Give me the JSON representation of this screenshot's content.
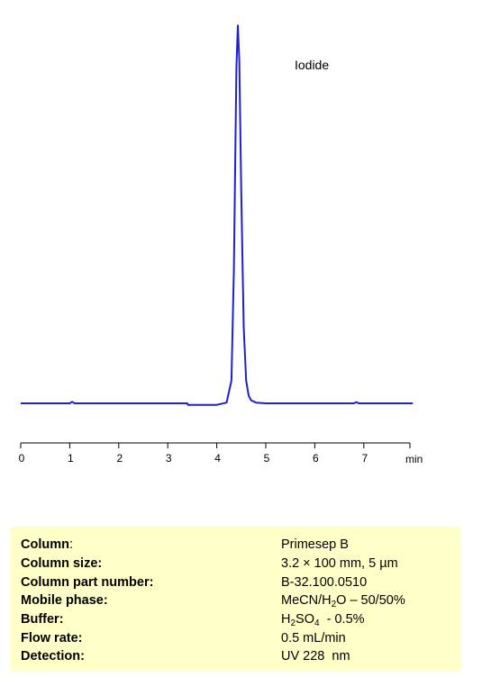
{
  "chart_data": {
    "type": "line",
    "xlabel": "min",
    "xlim": [
      0,
      8
    ],
    "xticks": [
      "0",
      "1",
      "2",
      "3",
      "4",
      "5",
      "6",
      "7"
    ],
    "ylim": [
      0,
      1
    ],
    "series": [
      {
        "color": "#1f1fd6",
        "peak": {
          "name": "Iodide",
          "retention_time": 4.43,
          "height": 0.99
        },
        "x": [
          0,
          1.0,
          1.05,
          1.1,
          2.0,
          3.4,
          3.41,
          4.0,
          4.2,
          4.3,
          4.35,
          4.4,
          4.43,
          4.46,
          4.5,
          4.55,
          4.6,
          4.65,
          4.7,
          4.8,
          5.0,
          6.0,
          6.8,
          6.85,
          6.9,
          8.0
        ],
        "y": [
          0.0,
          0.0,
          0.004,
          0.0,
          0.0,
          0.0,
          -0.004,
          -0.004,
          0.002,
          0.06,
          0.35,
          0.88,
          0.99,
          0.9,
          0.55,
          0.2,
          0.06,
          0.02,
          0.008,
          0.002,
          0.0,
          0.0,
          0.0,
          0.003,
          0.0,
          0.0
        ]
      }
    ]
  },
  "conditions": {
    "column_label": "Column",
    "column_value": "Primesep  B",
    "column_size_label": "Column size:",
    "column_size_value": "3.2 × 100 mm, 5 µm",
    "part_number_label": "Column part number:",
    "part_number_value": "B-32.100.0510",
    "mobile_phase_label": "Mobile phase:",
    "mobile_phase_value": {
      "a": "MeCN/H",
      "sub": "2",
      "b": "O – 50/50%"
    },
    "buffer_label": "Buffer:",
    "buffer_value": {
      "a": "H",
      "sub1": "2",
      "b": "SO",
      "sub2": "4",
      "c": "  - 0.5%"
    },
    "flow_rate_label": "Flow rate:",
    "flow_rate_value": "0.5 mL/min",
    "detection_label": "Detection:",
    "detection_value": "UV 228  nm"
  }
}
